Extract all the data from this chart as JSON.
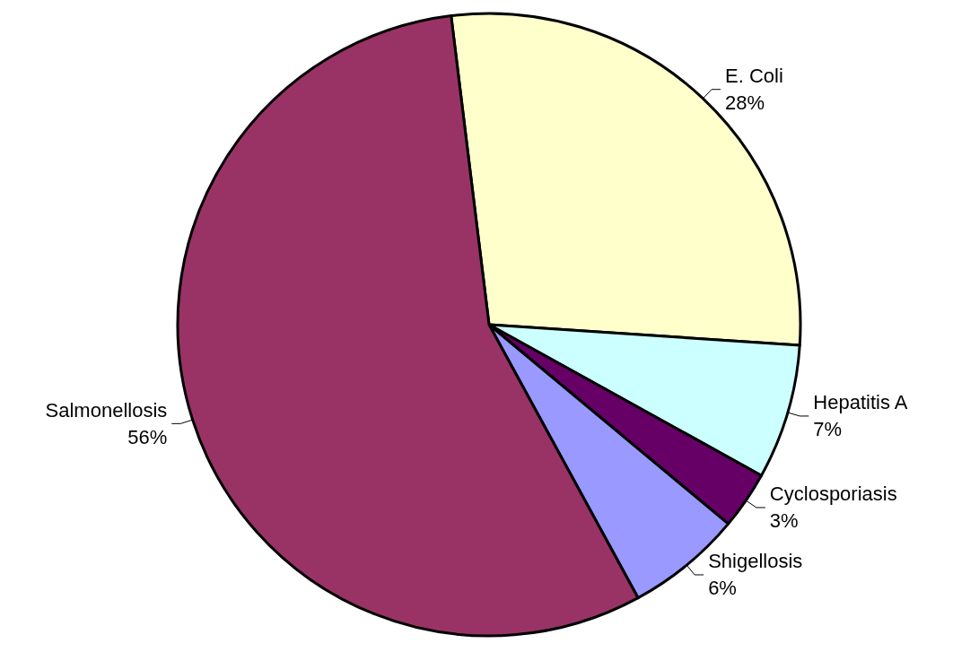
{
  "chart_data": {
    "type": "pie",
    "categories": [
      "E. Coli",
      "Hepatitis A",
      "Cyclosporiasis",
      "Shigellosis",
      "Salmonellosis"
    ],
    "values": [
      28,
      7,
      3,
      6,
      56
    ],
    "value_labels": [
      "28%",
      "7%",
      "3%",
      "6%",
      "56%"
    ],
    "colors": [
      "#ffffcc",
      "#ccffff",
      "#660066",
      "#9999ff",
      "#993366"
    ]
  }
}
